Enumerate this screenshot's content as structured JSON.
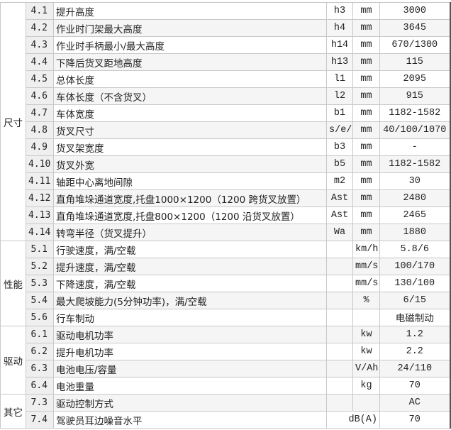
{
  "sections": [
    {
      "category": "尺寸",
      "rows": [
        {
          "no": "4.1",
          "desc": "提升高度",
          "sym": "h3",
          "unit": "mm",
          "val": "3000"
        },
        {
          "no": "4.2",
          "desc": "作业时门架最大高度",
          "sym": "h4",
          "unit": "mm",
          "val": "3645"
        },
        {
          "no": "4.3",
          "desc": "作业时手柄最小/最大高度",
          "sym": "h14",
          "unit": "mm",
          "val": "670/1300"
        },
        {
          "no": "4.4",
          "desc": "下降后货叉距地高度",
          "sym": "h13",
          "unit": "mm",
          "val": "115"
        },
        {
          "no": "4.5",
          "desc": "总体长度",
          "sym": "l1",
          "unit": "mm",
          "val": "2095"
        },
        {
          "no": "4.6",
          "desc": "车体长度（不含货叉）",
          "sym": "l2",
          "unit": "mm",
          "val": "915"
        },
        {
          "no": "4.7",
          "desc": "车体宽度",
          "sym": "b1",
          "unit": "mm",
          "val": "1182-1582"
        },
        {
          "no": "4.8",
          "desc": "货叉尺寸",
          "sym": "s/e/l",
          "unit": "mm",
          "val": "40/100/1070"
        },
        {
          "no": "4.9",
          "desc": "货叉架宽度",
          "sym": "b3",
          "unit": "mm",
          "val": "-"
        },
        {
          "no": "4.10",
          "desc": "货叉外宽",
          "sym": "b5",
          "unit": "mm",
          "val": "1182-1582"
        },
        {
          "no": "4.11",
          "desc": "轴距中心离地间隙",
          "sym": "m2",
          "unit": "mm",
          "val": "30"
        },
        {
          "no": "4.12",
          "desc": "直角堆垛通道宽度,托盘1000×1200（1200 跨货叉放置）",
          "sym": "Ast",
          "unit": "mm",
          "val": "2480"
        },
        {
          "no": "4.13",
          "desc": "直角堆垛通道宽度,托盘800×1200（1200 沿货叉放置）",
          "sym": "Ast",
          "unit": "mm",
          "val": "2465"
        },
        {
          "no": "4.14",
          "desc": "转弯半径（货叉提升）",
          "sym": "Wa",
          "unit": "mm",
          "val": "1880"
        }
      ]
    },
    {
      "category": "性能",
      "rows": [
        {
          "no": "5.1",
          "desc": "行驶速度，满/空载",
          "sym": "",
          "unit": "km/h",
          "val": "5.8/6"
        },
        {
          "no": "5.2",
          "desc": "提升速度，满/空载",
          "sym": "",
          "unit": "mm/s",
          "val": "100/170"
        },
        {
          "no": "5.3",
          "desc": "下降速度，满/空载",
          "sym": "",
          "unit": "mm/s",
          "val": "130/100"
        },
        {
          "no": "5.4",
          "desc": "最大爬坡能力(5分钟功率)，满/空载",
          "sym": "",
          "unit": "%",
          "val": "6/15"
        },
        {
          "no": "5.6",
          "desc": "行车制动",
          "sym": "",
          "unit": "",
          "val": "电磁制动"
        }
      ]
    },
    {
      "category": "驱动",
      "rows": [
        {
          "no": "6.1",
          "desc": "驱动电机功率",
          "sym": "",
          "unit": "kw",
          "val": "1.2"
        },
        {
          "no": "6.2",
          "desc": "提升电机功率",
          "sym": "",
          "unit": "kw",
          "val": "2.2"
        },
        {
          "no": "6.3",
          "desc": "电池电压/容量",
          "sym": "",
          "unit": "V/Ah",
          "val": "24/110"
        },
        {
          "no": "6.4",
          "desc": "电池重量",
          "sym": "",
          "unit": "kg",
          "val": "70"
        }
      ]
    },
    {
      "category": "其它",
      "rows": [
        {
          "no": "7.3",
          "desc": "驱动控制方式",
          "sym": "",
          "unit": "",
          "val": "AC"
        },
        {
          "no": "7.4",
          "desc": "驾驶员耳边噪音水平",
          "sym": "",
          "unit": "dB(A)",
          "val": "70"
        }
      ]
    }
  ]
}
